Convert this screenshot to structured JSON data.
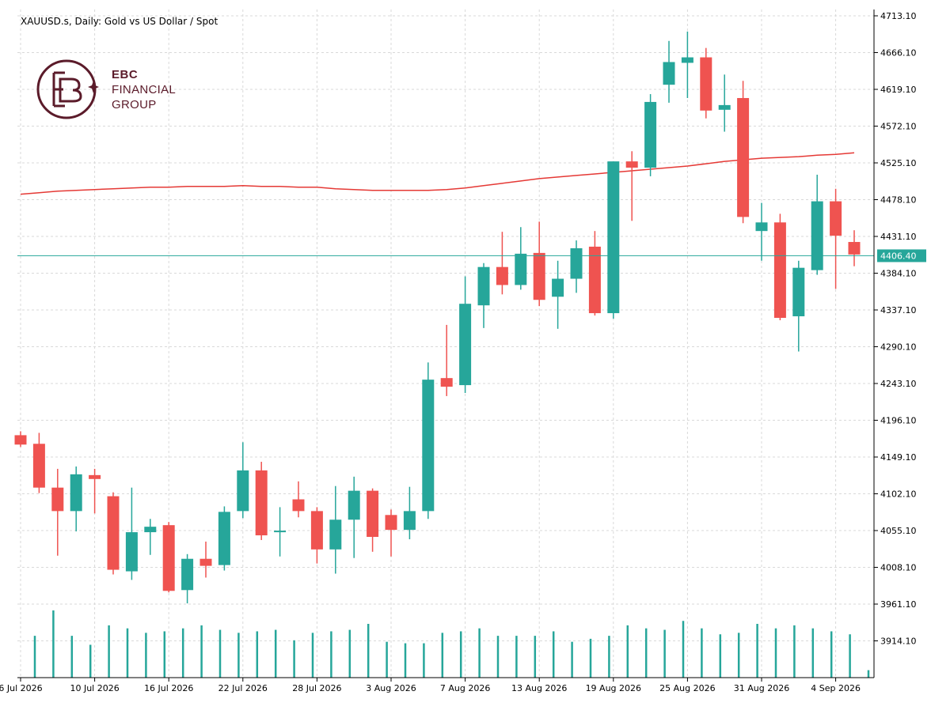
{
  "title": "XAUUSD.s, Daily:  Gold vs US Dollar / Spot",
  "logo": {
    "line1": "EBC",
    "line2": "FINANCIAL",
    "line3": "GROUP"
  },
  "colors": {
    "up": "#26a69a",
    "down": "#ef5350",
    "ma": "#e53935",
    "price_line": "#26a69a",
    "grid": "#d9d9d9",
    "axis": "#000000"
  },
  "chart_data": {
    "type": "candlestick",
    "title": "XAUUSD.s, Daily:  Gold vs US Dollar / Spot",
    "ylim": [
      3867.1,
      4713.1
    ],
    "y_ticks": [
      "4713.10",
      "4666.10",
      "4619.10",
      "4572.10",
      "4525.10",
      "4478.10",
      "4431.10",
      "4384.10",
      "4337.10",
      "4290.10",
      "4243.10",
      "4196.10",
      "4149.10",
      "4102.10",
      "4055.10",
      "4008.10",
      "3961.10",
      "3914.10"
    ],
    "x_tick_labels": [
      {
        "index": 0,
        "label": "6 Jul 2026"
      },
      {
        "index": 4,
        "label": "10 Jul 2026"
      },
      {
        "index": 8,
        "label": "16 Jul 2026"
      },
      {
        "index": 12,
        "label": "22 Jul 2026"
      },
      {
        "index": 16,
        "label": "28 Jul 2026"
      },
      {
        "index": 20,
        "label": "3 Aug 2026"
      },
      {
        "index": 24,
        "label": "7 Aug 2026"
      },
      {
        "index": 28,
        "label": "13 Aug 2026"
      },
      {
        "index": 32,
        "label": "19 Aug 2026"
      },
      {
        "index": 36,
        "label": "25 Aug 2026"
      },
      {
        "index": 40,
        "label": "31 Aug 2026"
      },
      {
        "index": 44,
        "label": "4 Sep 2026"
      }
    ],
    "current_price": "4406.40",
    "candles": [
      {
        "o": 4177,
        "h": 4182,
        "l": 4162,
        "c": 4165
      },
      {
        "o": 4166,
        "h": 4180,
        "l": 4103,
        "c": 4110
      },
      {
        "o": 4110,
        "h": 4134,
        "l": 4023,
        "c": 4080
      },
      {
        "o": 4080,
        "h": 4137,
        "l": 4054,
        "c": 4127
      },
      {
        "o": 4126,
        "h": 4134,
        "l": 4077,
        "c": 4121
      },
      {
        "o": 4099,
        "h": 4104,
        "l": 3999,
        "c": 4005
      },
      {
        "o": 4003,
        "h": 4110,
        "l": 3992,
        "c": 4053
      },
      {
        "o": 4053,
        "h": 4070,
        "l": 4024,
        "c": 4060
      },
      {
        "o": 4062,
        "h": 4066,
        "l": 3976,
        "c": 3978
      },
      {
        "o": 3979,
        "h": 4025,
        "l": 3962,
        "c": 4019
      },
      {
        "o": 4019,
        "h": 4041,
        "l": 3995,
        "c": 4010
      },
      {
        "o": 4011,
        "h": 4086,
        "l": 4004,
        "c": 4079
      },
      {
        "o": 4080,
        "h": 4168,
        "l": 4071,
        "c": 4132
      },
      {
        "o": 4132,
        "h": 4143,
        "l": 4043,
        "c": 4049
      },
      {
        "o": 4053,
        "h": 4085,
        "l": 4022,
        "c": 4055
      },
      {
        "o": 4095,
        "h": 4118,
        "l": 4072,
        "c": 4080
      },
      {
        "o": 4080,
        "h": 4085,
        "l": 4013,
        "c": 4031
      },
      {
        "o": 4031,
        "h": 4112,
        "l": 4000,
        "c": 4069
      },
      {
        "o": 4069,
        "h": 4124,
        "l": 4020,
        "c": 4106
      },
      {
        "o": 4106,
        "h": 4109,
        "l": 4028,
        "c": 4047
      },
      {
        "o": 4075,
        "h": 4082,
        "l": 4022,
        "c": 4056
      },
      {
        "o": 4056,
        "h": 4111,
        "l": 4044,
        "c": 4080
      },
      {
        "o": 4080,
        "h": 4270,
        "l": 4070,
        "c": 4248
      },
      {
        "o": 4250,
        "h": 4318,
        "l": 4227,
        "c": 4239
      },
      {
        "o": 4241,
        "h": 4380,
        "l": 4231,
        "c": 4345
      },
      {
        "o": 4343,
        "h": 4397,
        "l": 4314,
        "c": 4392
      },
      {
        "o": 4392,
        "h": 4437,
        "l": 4357,
        "c": 4369
      },
      {
        "o": 4369,
        "h": 4443,
        "l": 4363,
        "c": 4409
      },
      {
        "o": 4410,
        "h": 4450,
        "l": 4342,
        "c": 4350
      },
      {
        "o": 4354,
        "h": 4400,
        "l": 4313,
        "c": 4377
      },
      {
        "o": 4377,
        "h": 4426,
        "l": 4359,
        "c": 4416
      },
      {
        "o": 4418,
        "h": 4438,
        "l": 4330,
        "c": 4333
      },
      {
        "o": 4333,
        "h": 4527,
        "l": 4326,
        "c": 4527
      },
      {
        "o": 4527,
        "h": 4540,
        "l": 4451,
        "c": 4519
      },
      {
        "o": 4519,
        "h": 4613,
        "l": 4508,
        "c": 4603
      },
      {
        "o": 4625,
        "h": 4681,
        "l": 4602,
        "c": 4654
      },
      {
        "o": 4653,
        "h": 4693,
        "l": 4608,
        "c": 4660
      },
      {
        "o": 4660,
        "h": 4672,
        "l": 4582,
        "c": 4592
      },
      {
        "o": 4593,
        "h": 4638,
        "l": 4565,
        "c": 4599
      },
      {
        "o": 4608,
        "h": 4630,
        "l": 4448,
        "c": 4456
      },
      {
        "o": 4438,
        "h": 4474,
        "l": 4400,
        "c": 4449
      },
      {
        "o": 4449,
        "h": 4460,
        "l": 4324,
        "c": 4327
      },
      {
        "o": 4329,
        "h": 4400,
        "l": 4284,
        "c": 4391
      },
      {
        "o": 4388,
        "h": 4510,
        "l": 4382,
        "c": 4476
      },
      {
        "o": 4476,
        "h": 4492,
        "l": 4364,
        "c": 4432
      },
      {
        "o": 4424,
        "h": 4439,
        "l": 4393,
        "c": 4408
      }
    ],
    "ma_line": [
      4485,
      4487,
      4489,
      4490,
      4491,
      4492,
      4493,
      4494,
      4494,
      4495,
      4495,
      4495,
      4496,
      4495,
      4495,
      4494,
      4494,
      4492,
      4491,
      4490,
      4490,
      4490,
      4490,
      4491,
      4493,
      4496,
      4499,
      4502,
      4505,
      4507,
      4509,
      4511,
      4513,
      4515,
      4517,
      4519,
      4521,
      4524,
      4527,
      4529,
      4531,
      4532,
      4533,
      4535,
      4536,
      4538
    ],
    "volume": [
      28,
      45,
      28,
      22,
      35,
      33,
      30,
      31,
      33,
      35,
      32,
      30,
      31,
      32,
      25,
      30,
      31,
      32,
      36,
      24,
      23,
      23,
      30,
      31,
      33,
      28,
      28,
      28,
      31,
      24,
      26,
      28,
      35,
      33,
      32,
      38,
      33,
      29,
      30,
      36,
      33,
      35,
      33,
      31,
      29,
      5
    ]
  }
}
